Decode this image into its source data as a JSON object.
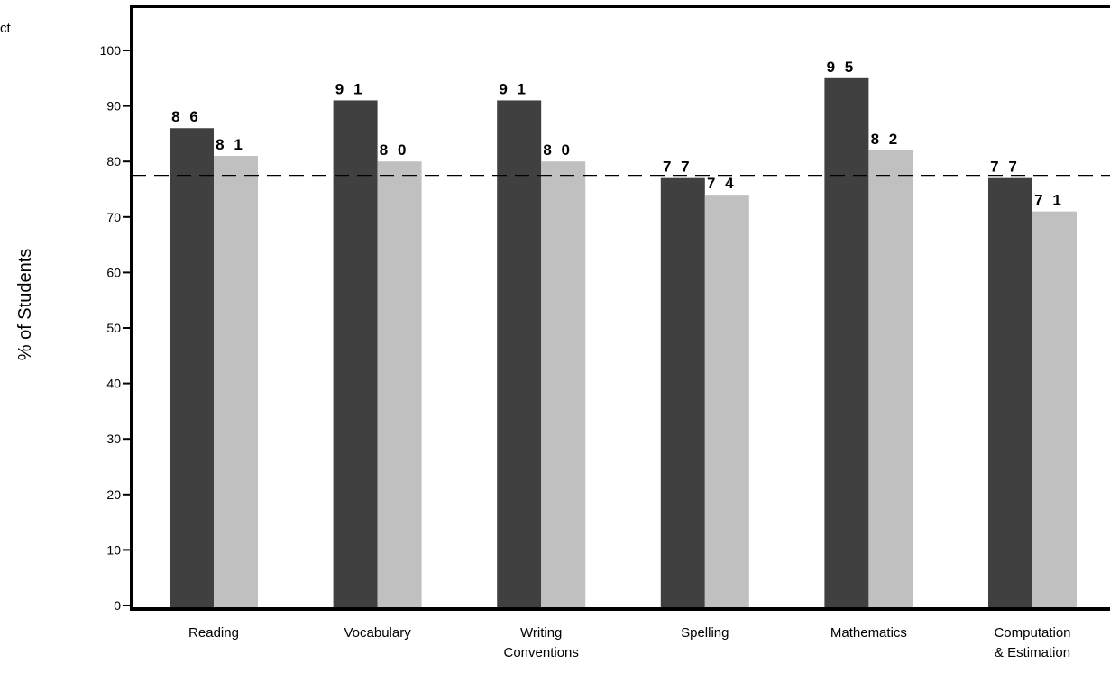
{
  "corner_fragment": "ct",
  "chart_data": {
    "type": "bar",
    "title": "",
    "xlabel": "",
    "ylabel": "% of Students",
    "ylim": [
      0,
      105
    ],
    "yticks": [
      0,
      10,
      20,
      30,
      40,
      50,
      60,
      70,
      80,
      90,
      100
    ],
    "categories": [
      [
        "Reading"
      ],
      [
        "Vocabulary"
      ],
      [
        "Writing",
        "Conventions"
      ],
      [
        "Spelling"
      ],
      [
        "Mathematics"
      ],
      [
        "Computation",
        "& Estimation"
      ]
    ],
    "series": [
      {
        "color": "#404040",
        "values": [
          86,
          91,
          91,
          77,
          95,
          77
        ],
        "labels": [
          "8 6",
          "9 1",
          "9 1",
          "7 7",
          "9 5",
          "7 7"
        ]
      },
      {
        "color": "#c0c0c0",
        "values": [
          81,
          80,
          80,
          74,
          82,
          71
        ],
        "labels": [
          "8 1",
          "8 0",
          "8 0",
          "7 4",
          "8 2",
          "7 1"
        ]
      }
    ],
    "reference_line": 77.5,
    "reference_style": "dashed",
    "grid": false,
    "legend": "none"
  }
}
